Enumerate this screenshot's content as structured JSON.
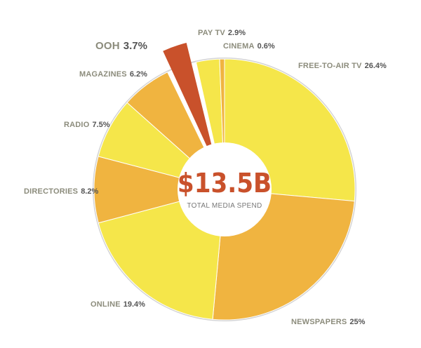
{
  "chart_data": {
    "type": "pie",
    "style": "donut",
    "center_value": "$13.5B",
    "center_label": "TOTAL MEDIA SPEND",
    "slices": [
      {
        "name": "FREE-TO-AIR TV",
        "value_label": "26.4%",
        "value": 26.4,
        "color": "#f5e64a"
      },
      {
        "name": "NEWSPAPERS",
        "value_label": "25%",
        "value": 25.0,
        "color": "#f0b440"
      },
      {
        "name": "ONLINE",
        "value_label": "19.4%",
        "value": 19.4,
        "color": "#f5e64a"
      },
      {
        "name": "DIRECTORIES",
        "value_label": "8.2%",
        "value": 8.2,
        "color": "#f0b440"
      },
      {
        "name": "RADIO",
        "value_label": "7.5%",
        "value": 7.5,
        "color": "#f5e64a"
      },
      {
        "name": "MAGAZINES",
        "value_label": "6.2%",
        "value": 6.2,
        "color": "#f0b440"
      },
      {
        "name": "OOH",
        "value_label": "3.7%",
        "value": 3.7,
        "color": "#c9512b",
        "exploded": true
      },
      {
        "name": "PAY TV",
        "value_label": "2.9%",
        "value": 2.9,
        "color": "#f5e64a"
      },
      {
        "name": "CINEMA",
        "value_label": "0.6%",
        "value": 0.6,
        "color": "#f0b440"
      }
    ]
  },
  "colors": {
    "ring": "#d4d4d4",
    "accent": "#c9512b"
  }
}
